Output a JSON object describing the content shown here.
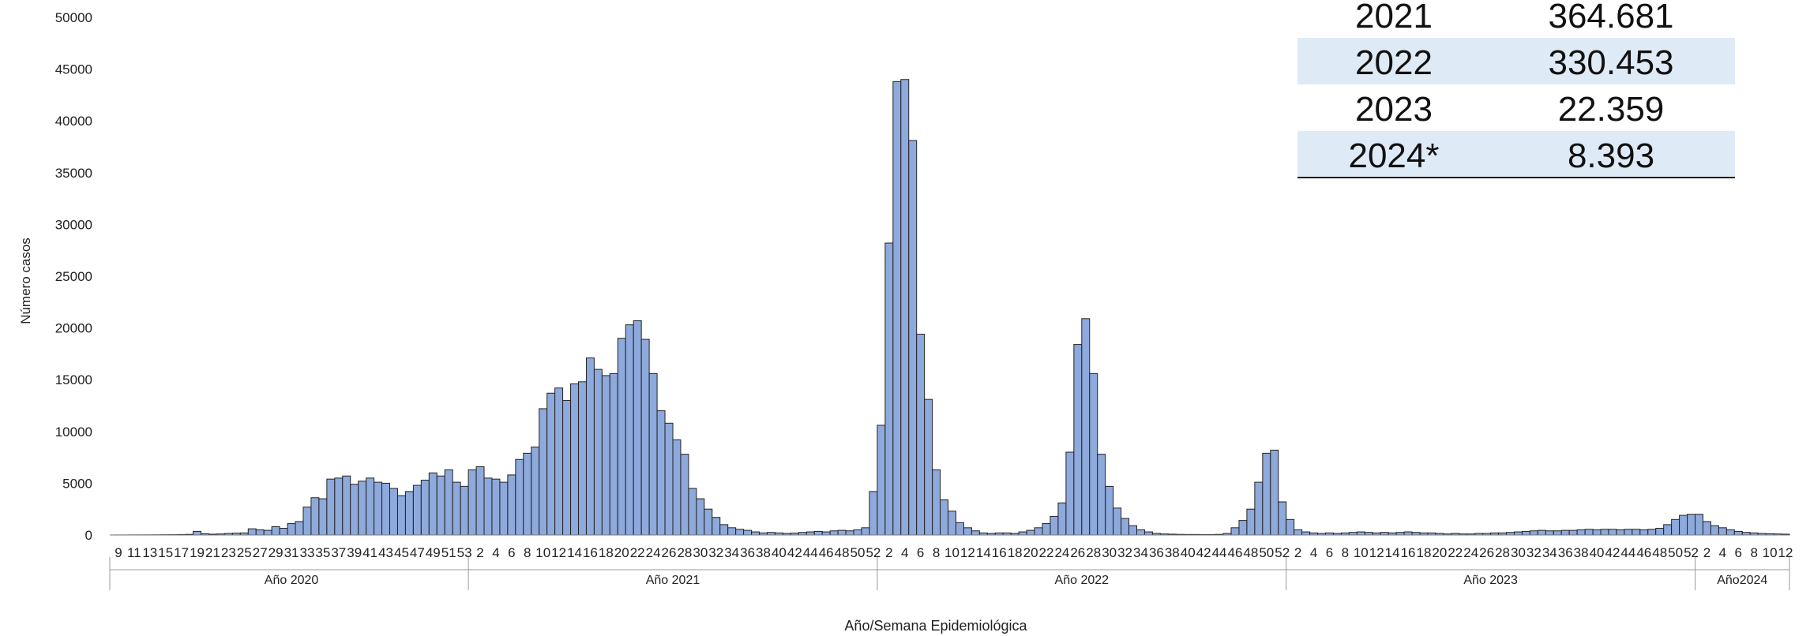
{
  "chart_data": {
    "type": "bar",
    "ylabel": "Número casos",
    "xlabel": "Año/Semana Epidemiológica",
    "ylim": [
      0,
      50000
    ],
    "yticks": [
      0,
      5000,
      10000,
      15000,
      20000,
      25000,
      30000,
      35000,
      40000,
      45000,
      50000
    ],
    "bar_color": "#8EA9DB",
    "bar_edge_color": "#222222",
    "grid": false,
    "years": [
      {
        "label": "Año 2020",
        "weeks": [
          9,
          10,
          11,
          12,
          13,
          14,
          15,
          16,
          17,
          18,
          19,
          20,
          21,
          22,
          23,
          24,
          25,
          26,
          27,
          28,
          29,
          30,
          31,
          32,
          33,
          34,
          35,
          36,
          37,
          38,
          39,
          40,
          41,
          42,
          43,
          44,
          45,
          46,
          47,
          48,
          49,
          50,
          51,
          52,
          53
        ],
        "values": [
          5,
          8,
          10,
          12,
          15,
          20,
          25,
          30,
          40,
          60,
          350,
          120,
          80,
          100,
          150,
          180,
          200,
          600,
          500,
          450,
          800,
          650,
          1100,
          1300,
          2700,
          3600,
          3500,
          5400,
          5500,
          5700,
          4900,
          5200,
          5500,
          5100,
          5000,
          4500,
          3800,
          4200,
          4800,
          5300,
          6000,
          5700,
          6300,
          5100,
          4700
        ]
      },
      {
        "label": "Año 2021",
        "weeks": [
          1,
          2,
          3,
          4,
          5,
          6,
          7,
          8,
          9,
          10,
          11,
          12,
          13,
          14,
          15,
          16,
          17,
          18,
          19,
          20,
          21,
          22,
          23,
          24,
          25,
          26,
          27,
          28,
          29,
          30,
          31,
          32,
          33,
          34,
          35,
          36,
          37,
          38,
          39,
          40,
          41,
          42,
          43,
          44,
          45,
          46,
          47,
          48,
          49,
          50,
          51,
          52
        ],
        "values": [
          6300,
          6600,
          5500,
          5400,
          5100,
          5800,
          7300,
          7900,
          8500,
          12200,
          13700,
          14200,
          13000,
          14600,
          14800,
          17100,
          16000,
          15400,
          15600,
          19000,
          20300,
          20700,
          18900,
          15600,
          12000,
          10800,
          9200,
          7800,
          4500,
          3500,
          2500,
          1700,
          1000,
          700,
          550,
          450,
          300,
          200,
          250,
          200,
          150,
          180,
          250,
          300,
          350,
          300,
          400,
          450,
          400,
          500,
          700,
          4200
        ]
      },
      {
        "label": "Año 2022",
        "weeks": [
          1,
          2,
          3,
          4,
          5,
          6,
          7,
          8,
          9,
          10,
          11,
          12,
          13,
          14,
          15,
          16,
          17,
          18,
          19,
          20,
          21,
          22,
          23,
          24,
          25,
          26,
          27,
          28,
          29,
          30,
          31,
          32,
          33,
          34,
          35,
          36,
          37,
          38,
          39,
          40,
          41,
          42,
          43,
          44,
          45,
          46,
          47,
          48,
          49,
          50,
          51,
          52
        ],
        "values": [
          10600,
          28200,
          43800,
          44000,
          38100,
          19400,
          13100,
          6300,
          3400,
          2300,
          1200,
          700,
          400,
          200,
          150,
          200,
          200,
          150,
          300,
          450,
          700,
          1100,
          1800,
          3100,
          8000,
          18400,
          20900,
          15600,
          7800,
          4700,
          2600,
          1600,
          900,
          500,
          300,
          150,
          100,
          80,
          60,
          50,
          50,
          40,
          40,
          60,
          150,
          700,
          1400,
          2500,
          5100,
          7900,
          8200,
          3200
        ]
      },
      {
        "label": "Año 2023",
        "weeks": [
          1,
          2,
          3,
          4,
          5,
          6,
          7,
          8,
          9,
          10,
          11,
          12,
          13,
          14,
          15,
          16,
          17,
          18,
          19,
          20,
          21,
          22,
          23,
          24,
          25,
          26,
          27,
          28,
          29,
          30,
          31,
          32,
          33,
          34,
          35,
          36,
          37,
          38,
          39,
          40,
          41,
          42,
          43,
          44,
          45,
          46,
          47,
          48,
          49,
          50,
          51,
          52
        ],
        "values": [
          1500,
          500,
          300,
          200,
          150,
          200,
          150,
          200,
          250,
          300,
          250,
          200,
          250,
          200,
          250,
          300,
          250,
          200,
          200,
          150,
          100,
          150,
          100,
          100,
          150,
          150,
          200,
          200,
          250,
          300,
          350,
          400,
          450,
          400,
          400,
          450,
          450,
          500,
          550,
          500,
          550,
          550,
          500,
          550,
          550,
          500,
          550,
          650,
          1000,
          1500,
          1900,
          2000
        ]
      },
      {
        "label": "Año2024",
        "weeks": [
          1,
          2,
          3,
          4,
          5,
          6,
          7,
          8,
          9,
          10,
          11,
          12
        ],
        "values": [
          2000,
          1300,
          900,
          700,
          500,
          350,
          250,
          200,
          150,
          120,
          100,
          80
        ]
      }
    ],
    "table": {
      "rows": [
        {
          "year": "2021",
          "value": "364.681",
          "shaded": false
        },
        {
          "year": "2022",
          "value": "330.453",
          "shaded": true
        },
        {
          "year": "2023",
          "value": "22.359",
          "shaded": false
        },
        {
          "year": "2024*",
          "value": "8.393",
          "shaded": true
        }
      ],
      "shade_color": "#DEEAF6"
    }
  }
}
